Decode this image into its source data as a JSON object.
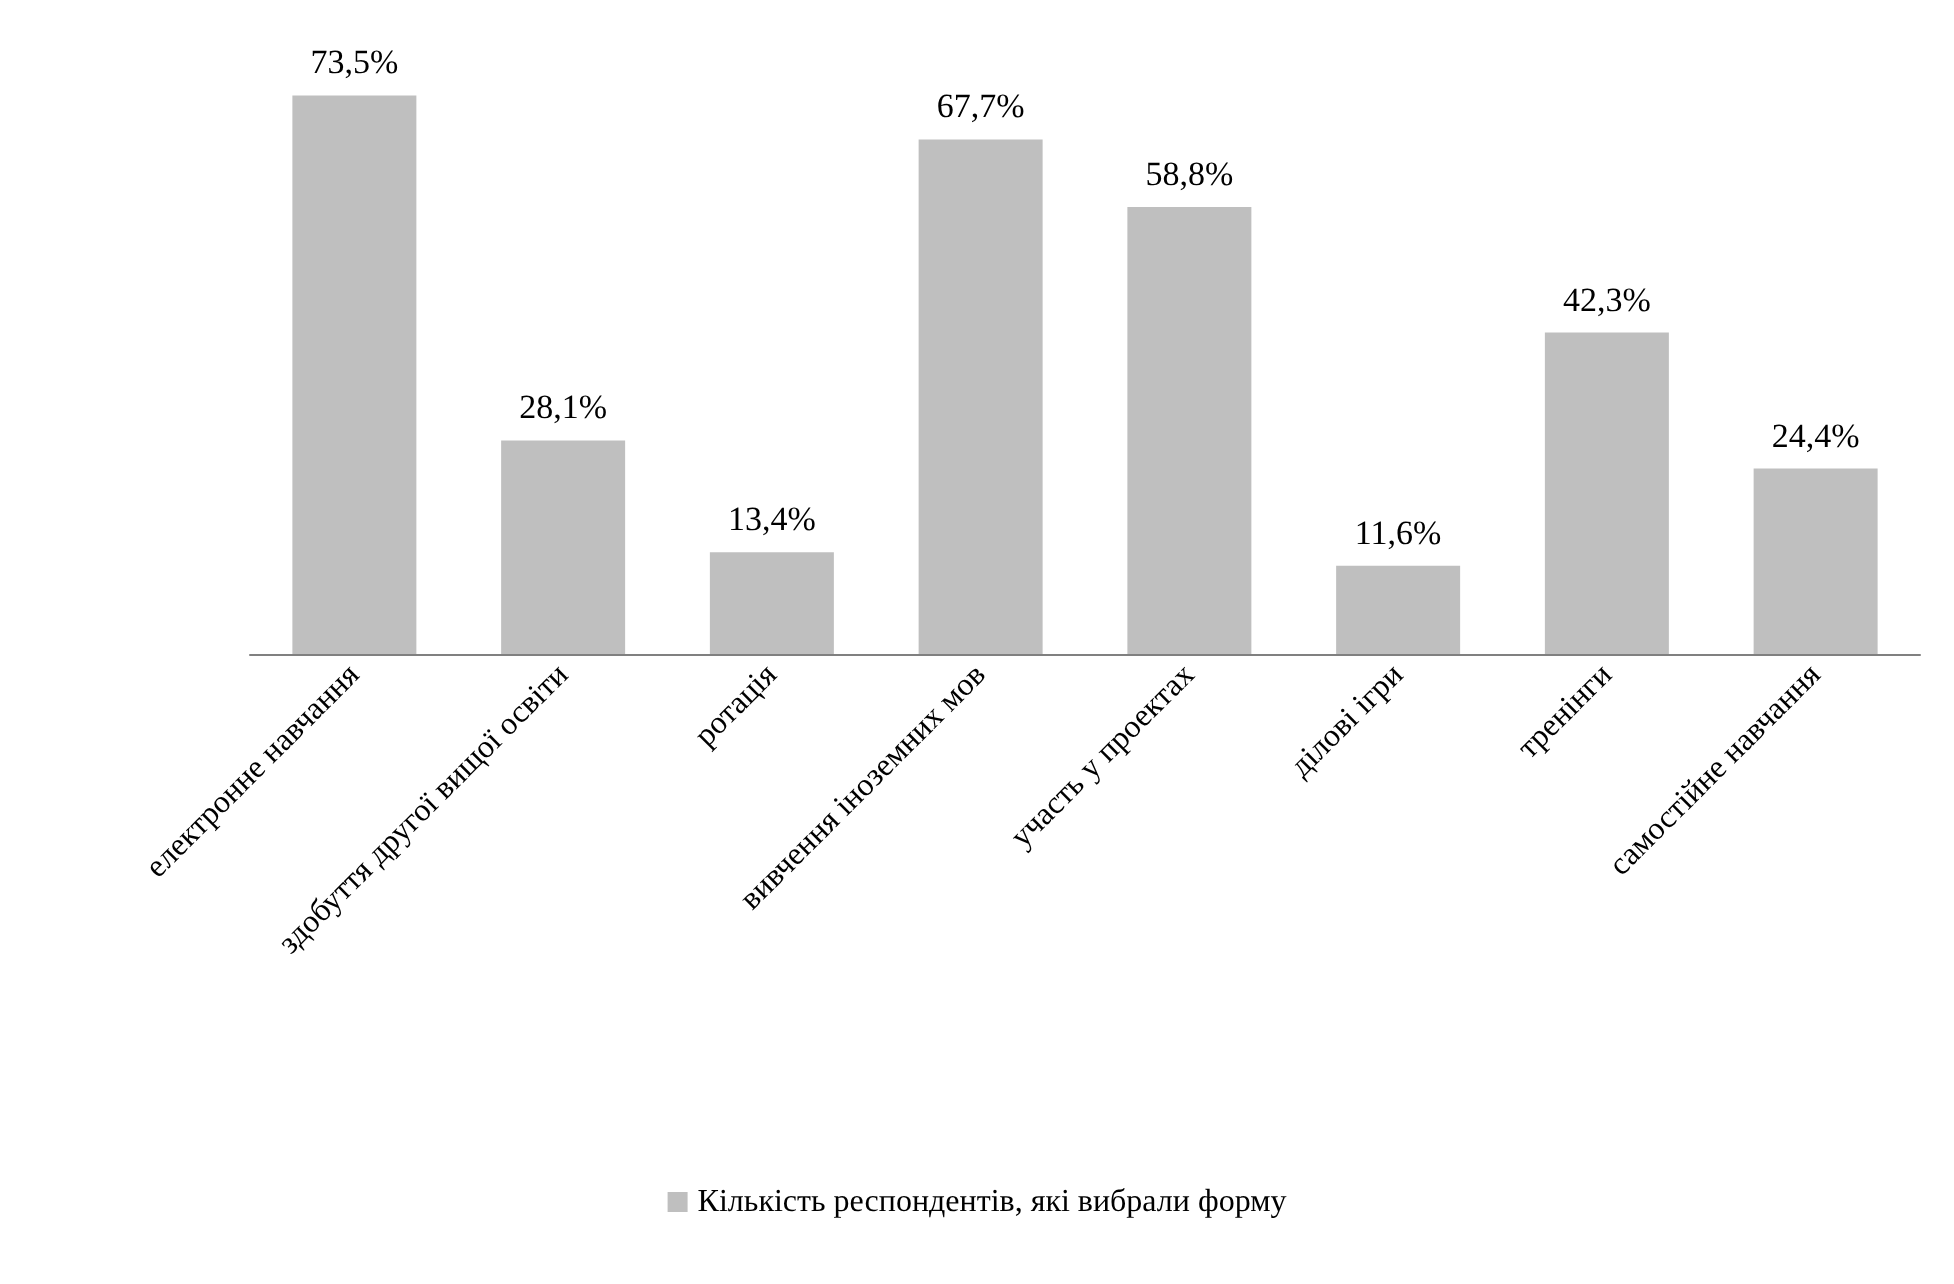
{
  "chart_data": {
    "type": "bar",
    "categories": [
      "електронне навчання",
      "здобуття другої вищої освіти",
      "ротація",
      "вивчення іноземних мов",
      "участь у проектах",
      "ділові ігри",
      "тренінги",
      "самостійне навчання"
    ],
    "series": [
      {
        "name": "Кількість респондентів, які вибрали форму",
        "color": "#bfbfbf",
        "values": [
          73.5,
          28.1,
          13.4,
          67.7,
          58.8,
          11.6,
          42.3,
          24.4
        ],
        "value_labels": [
          "73,5%",
          "28,1%",
          "13,4%",
          "67,7%",
          "58,8%",
          "11,6%",
          "42,3%",
          "24,4%"
        ]
      }
    ],
    "legend": "bottom",
    "grid": false,
    "tick_labels": "x"
  }
}
